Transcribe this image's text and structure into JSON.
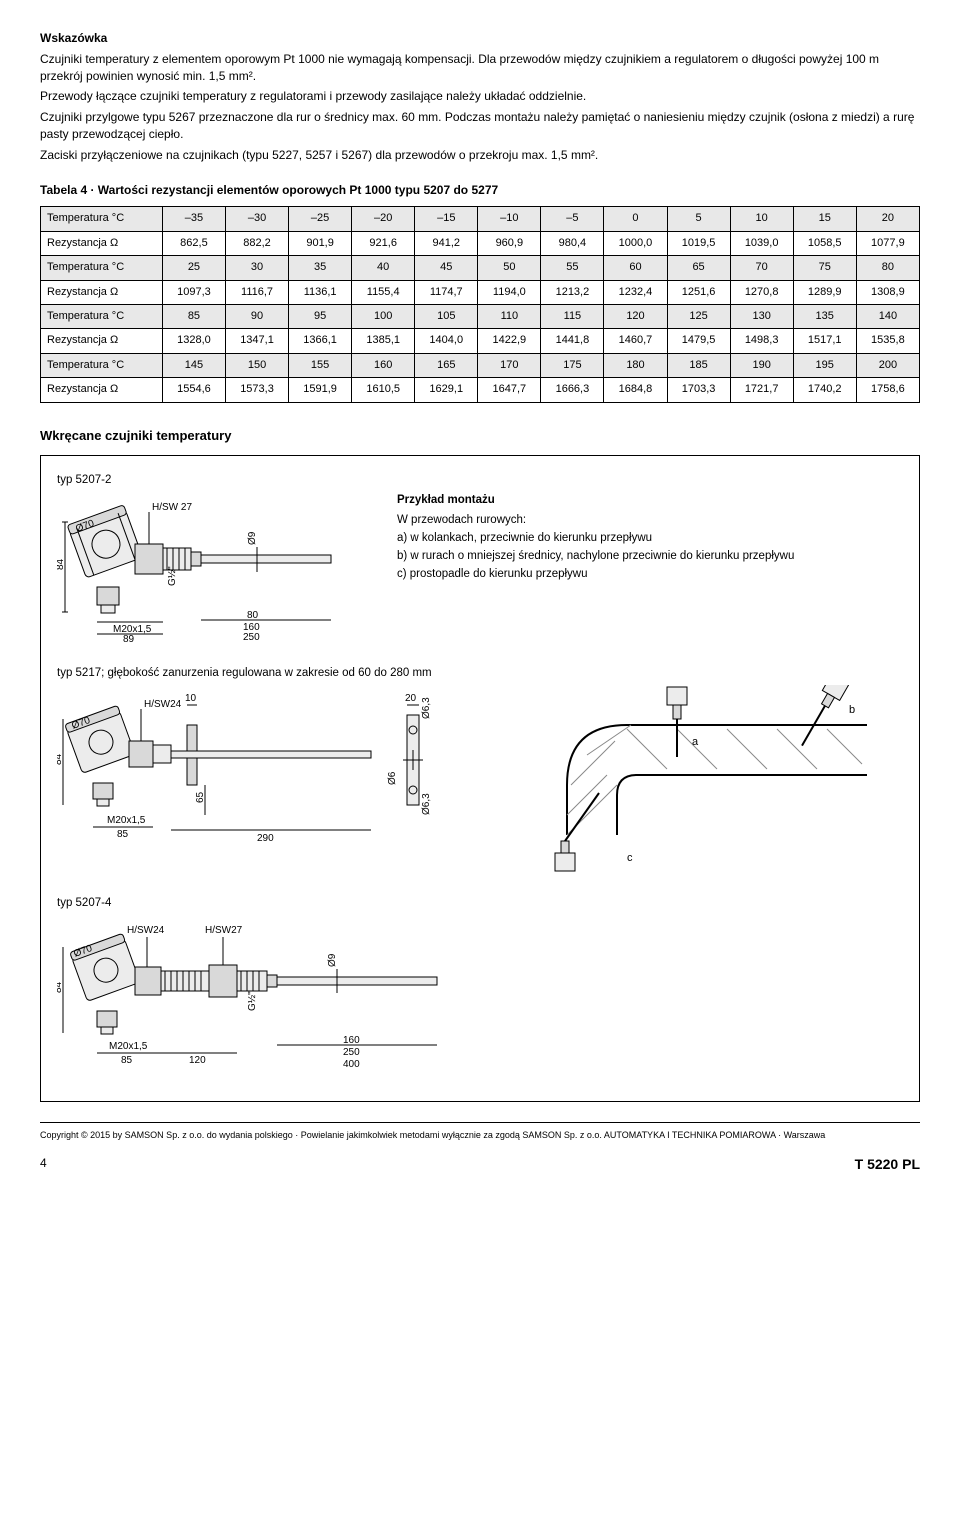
{
  "hint_title": "Wskazówka",
  "intro": {
    "p1": "Czujniki temperatury z elementem oporowym Pt 1000 nie wymagają kompensacji. Dla przewodów między czujnikiem a regulatorem o długości powyżej 100 m przekrój powinien wynosić min. 1,5 mm².",
    "p2": "Przewody łączące czujniki temperatury z regulatorami i przewody zasilające należy układać oddzielnie.",
    "p3": "Czujniki przylgowe typu 5267 przeznaczone dla rur o średnicy max. 60 mm. Podczas montażu należy pamiętać o naniesieniu między czujnik (osłona z miedzi) a rurę pasty przewodzącej ciepło.",
    "p4": "Zaciski przyłączeniowe na czujnikach (typu 5227, 5257 i 5267) dla przewodów o przekroju max. 1,5 mm²."
  },
  "table4": {
    "title": "Tabela 4 · Wartości rezystancji elementów oporowych Pt 1000 typu 5207 do 5277",
    "temp_label": "Temperatura °C",
    "res_label": "Rezystancja Ω",
    "rows": [
      {
        "temps": [
          "–35",
          "–30",
          "–25",
          "–20",
          "–15",
          "–10",
          "–5",
          "0",
          "5",
          "10",
          "15",
          "20"
        ],
        "res": [
          "862,5",
          "882,2",
          "901,9",
          "921,6",
          "941,2",
          "960,9",
          "980,4",
          "1000,0",
          "1019,5",
          "1039,0",
          "1058,5",
          "1077,9"
        ]
      },
      {
        "temps": [
          "25",
          "30",
          "35",
          "40",
          "45",
          "50",
          "55",
          "60",
          "65",
          "70",
          "75",
          "80"
        ],
        "res": [
          "1097,3",
          "1116,7",
          "1136,1",
          "1155,4",
          "1174,7",
          "1194,0",
          "1213,2",
          "1232,4",
          "1251,6",
          "1270,8",
          "1289,9",
          "1308,9"
        ]
      },
      {
        "temps": [
          "85",
          "90",
          "95",
          "100",
          "105",
          "110",
          "115",
          "120",
          "125",
          "130",
          "135",
          "140"
        ],
        "res": [
          "1328,0",
          "1347,1",
          "1366,1",
          "1385,1",
          "1404,0",
          "1422,9",
          "1441,8",
          "1460,7",
          "1479,5",
          "1498,3",
          "1517,1",
          "1535,8"
        ]
      },
      {
        "temps": [
          "145",
          "150",
          "155",
          "160",
          "165",
          "170",
          "175",
          "180",
          "185",
          "190",
          "195",
          "200"
        ],
        "res": [
          "1554,6",
          "1573,3",
          "1591,9",
          "1610,5",
          "1629,1",
          "1647,7",
          "1666,3",
          "1684,8",
          "1703,3",
          "1721,7",
          "1740,2",
          "1758,6"
        ]
      }
    ],
    "header_bg": "#e8e8e8",
    "border": "#000000",
    "fontsize": 11
  },
  "section_title": "Wkręcane czujniki temperatury",
  "diag5207_2": {
    "label": "typ 5207-2",
    "hsw": "H/SW 27",
    "d70": "Ø70",
    "d9": "Ø9",
    "dim84": "84",
    "g12": "G½\"",
    "m20": "M20x1,5",
    "d89": "89",
    "d80": "80",
    "d160": "160",
    "d250": "250"
  },
  "mounting": {
    "title": "Przykład montażu",
    "intro": "W przewodach rurowych:",
    "a": "a) w kolankach, przeciwnie do kierunku przepływu",
    "b": "b) w rurach o mniejszej średnicy, nachylone przeciwnie do kierunku przepływu",
    "c": "c) prostopadle do kierunku przepływu"
  },
  "diag5217": {
    "label": "typ 5217; głębokość zanurzenia regulowana w zakresie od 60 do 280 mm",
    "hsw": "H/SW24",
    "d70": "Ø70",
    "dim84": "84",
    "m20": "M20x1,5",
    "d85": "85",
    "d65": "65",
    "d290": "290",
    "d10": "10",
    "d20": "20",
    "d6": "Ø6",
    "d63": "Ø6,3",
    "pipe_a": "a",
    "pipe_b": "b",
    "pipe_c": "c"
  },
  "diag5207_4": {
    "label": "typ 5207-4",
    "hsw24": "H/SW24",
    "hsw27": "H/SW27",
    "d70": "Ø70",
    "dim84": "84",
    "g12": "G½\"",
    "d9": "Ø9",
    "m20": "M20x1,5",
    "d85": "85",
    "d120": "120",
    "d160": "160",
    "d250": "250",
    "d400": "400"
  },
  "copyright": "Copyright © 2015 by SAMSON Sp. z o.o. do wydania polskiego · Powielanie jakimkolwiek metodami wyłącznie za zgodą SAMSON Sp. z o.o. AUTOMATYKA I TECHNIKA POMIAROWA · Warszawa",
  "page_num": "4",
  "doc_id": "T 5220 PL",
  "colors": {
    "stroke": "#000000",
    "fill_grey": "#d9d9d9",
    "fill_lightgrey": "#ececec",
    "hatch": "#888888"
  }
}
